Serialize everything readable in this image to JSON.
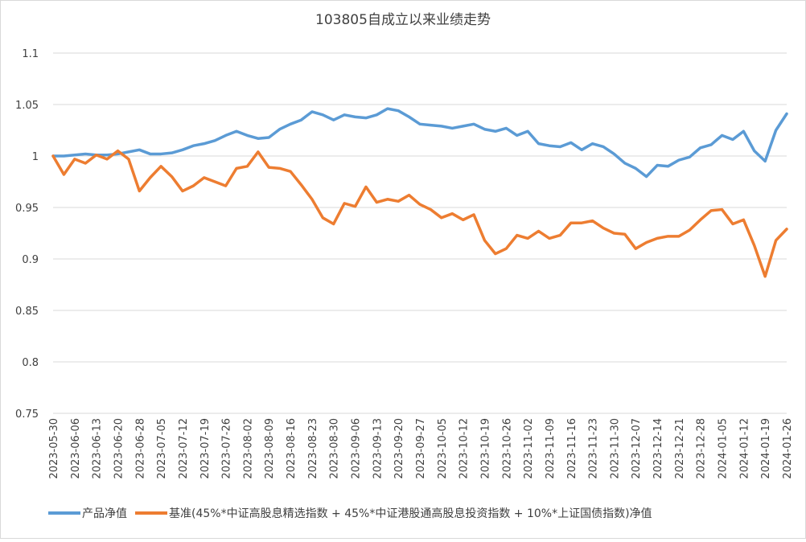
{
  "chart_data": {
    "type": "line",
    "title": "103805自成立以来业绩走势",
    "categories": [
      "2023-05-30",
      null,
      "2023-06-06",
      null,
      "2023-06-13",
      null,
      "2023-06-20",
      null,
      "2023-06-28",
      null,
      "2023-07-05",
      null,
      "2023-07-12",
      null,
      "2023-07-19",
      null,
      "2023-07-26",
      null,
      "2023-08-02",
      null,
      "2023-08-09",
      null,
      "2023-08-16",
      null,
      "2023-08-23",
      null,
      "2023-08-30",
      null,
      "2023-09-06",
      null,
      "2023-09-13",
      null,
      "2023-09-20",
      null,
      "2023-09-27",
      null,
      "2023-10-05",
      null,
      "2023-10-12",
      null,
      "2023-10-19",
      null,
      "2023-10-26",
      null,
      "2023-11-02",
      null,
      "2023-11-09",
      null,
      "2023-11-16",
      null,
      "2023-11-23",
      null,
      "2023-11-30",
      null,
      "2023-12-07",
      null,
      "2023-12-14",
      null,
      "2023-12-21",
      null,
      "2023-12-28",
      null,
      "2024-01-05",
      null,
      "2024-01-12",
      null,
      "2024-01-19",
      null,
      "2024-01-26"
    ],
    "series": [
      {
        "name": "产品净值",
        "color": "#5b9bd5",
        "values": [
          1.0,
          1.0,
          1.001,
          1.002,
          1.001,
          1.001,
          1.002,
          1.004,
          1.006,
          1.002,
          1.002,
          1.003,
          1.006,
          1.01,
          1.012,
          1.015,
          1.02,
          1.024,
          1.02,
          1.017,
          1.018,
          1.026,
          1.031,
          1.035,
          1.043,
          1.04,
          1.035,
          1.04,
          1.038,
          1.037,
          1.04,
          1.046,
          1.044,
          1.038,
          1.031,
          1.03,
          1.029,
          1.027,
          1.029,
          1.031,
          1.026,
          1.024,
          1.027,
          1.02,
          1.024,
          1.012,
          1.01,
          1.009,
          1.013,
          1.006,
          1.012,
          1.009,
          1.002,
          0.993,
          0.988,
          0.98,
          0.991,
          0.99,
          0.996,
          0.999,
          1.008,
          1.011,
          1.02,
          1.016,
          1.024,
          1.005,
          0.995,
          1.025,
          1.041
        ]
      },
      {
        "name": "基准(45%*中证高股息精选指数 + 45%*中证港股通高股息投资指数 + 10%*上证国债指数)净值",
        "color": "#ed7d31",
        "values": [
          1.0,
          0.982,
          0.997,
          0.993,
          1.001,
          0.997,
          1.005,
          0.997,
          0.966,
          0.979,
          0.99,
          0.98,
          0.966,
          0.971,
          0.979,
          0.975,
          0.971,
          0.988,
          0.99,
          1.004,
          0.989,
          0.988,
          0.985,
          0.972,
          0.958,
          0.94,
          0.934,
          0.954,
          0.951,
          0.97,
          0.955,
          0.958,
          0.956,
          0.962,
          0.953,
          0.948,
          0.94,
          0.944,
          0.938,
          0.943,
          0.918,
          0.905,
          0.91,
          0.923,
          0.92,
          0.927,
          0.92,
          0.923,
          0.935,
          0.935,
          0.937,
          0.93,
          0.925,
          0.924,
          0.91,
          0.916,
          0.92,
          0.922,
          0.922,
          0.928,
          0.938,
          0.947,
          0.948,
          0.934,
          0.938,
          0.913,
          0.883,
          0.918,
          0.929
        ]
      }
    ],
    "ylim": [
      0.75,
      1.1
    ],
    "yticks": [
      0.75,
      0.8,
      0.85,
      0.9,
      0.95,
      1,
      1.05,
      1.1
    ],
    "grid": true,
    "legend": "bottom"
  }
}
